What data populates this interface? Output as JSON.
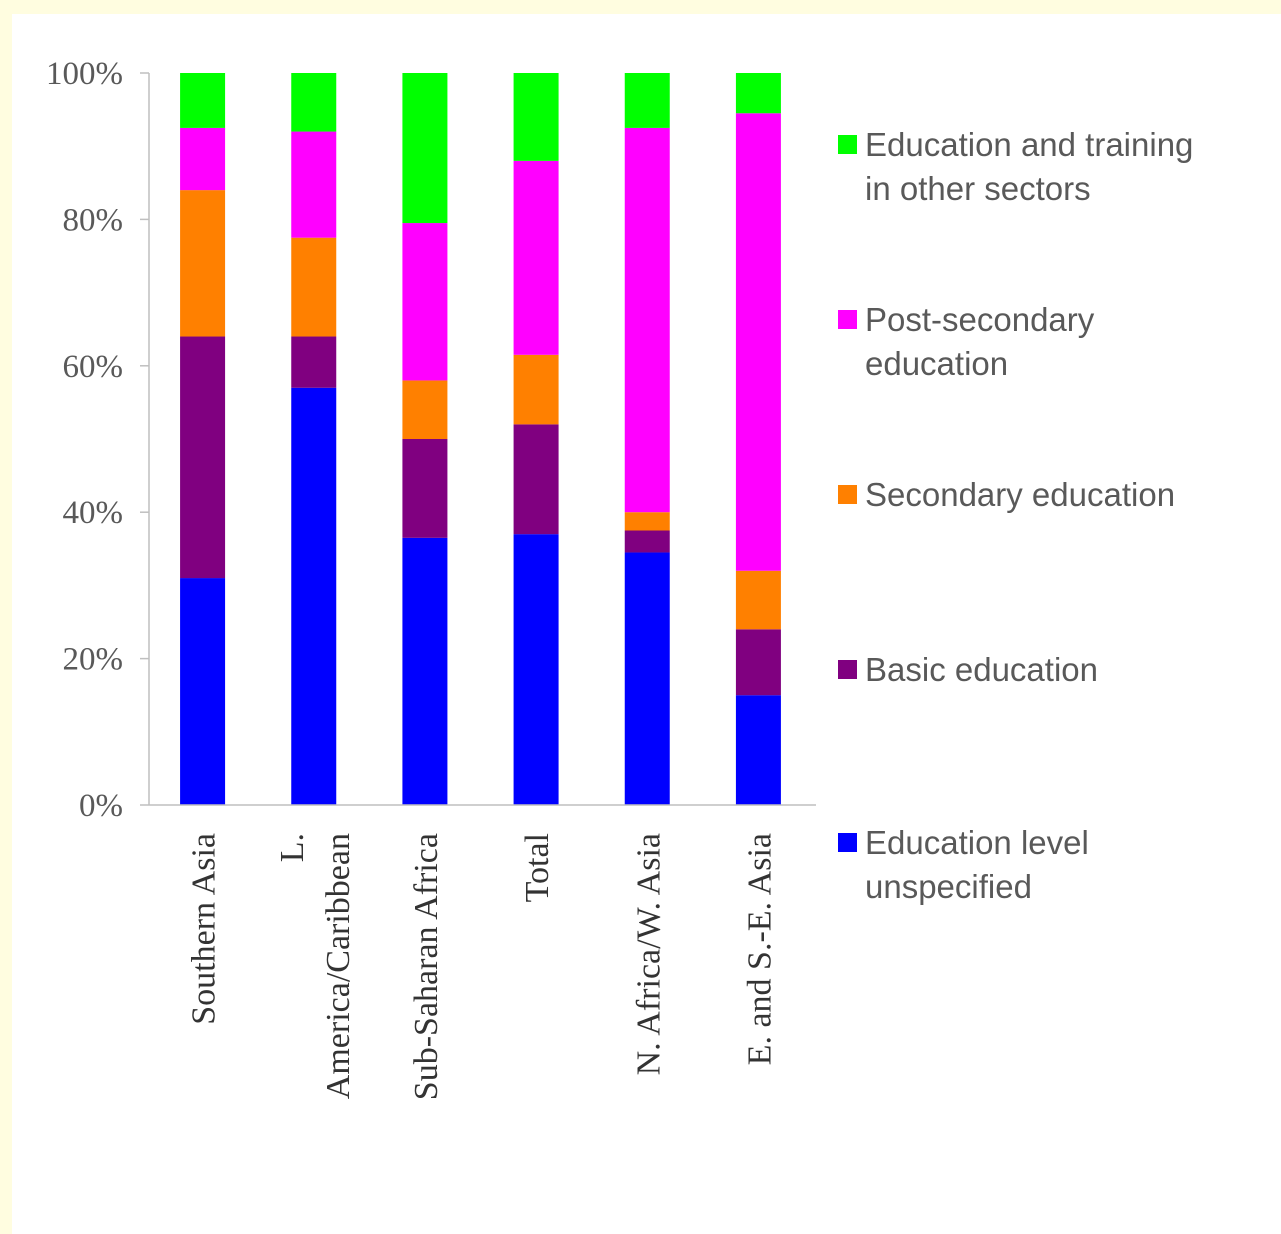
{
  "chart_data": {
    "type": "bar",
    "stacked": true,
    "percent_stacked": true,
    "categories": [
      [
        "Southern Asia"
      ],
      [
        "L.",
        "America/Caribbean"
      ],
      [
        "Sub-Saharan Africa"
      ],
      [
        "Total"
      ],
      [
        "N. Africa/W. Asia"
      ],
      [
        "E. and S.-E. Asia"
      ]
    ],
    "series": [
      {
        "name": "Education level unspecified",
        "color": "#0000ff",
        "values": [
          31,
          57,
          36.5,
          37,
          34.5,
          15
        ]
      },
      {
        "name": "Basic education",
        "color": "#800080",
        "values": [
          33,
          7,
          13.5,
          15,
          3,
          9
        ]
      },
      {
        "name": "Secondary education",
        "color": "#ff8000",
        "values": [
          20,
          13.5,
          8,
          9.5,
          2.5,
          8
        ]
      },
      {
        "name": "Post-secondary education",
        "color": "#ff00ff",
        "values": [
          8.5,
          14.5,
          21.5,
          26.5,
          52.5,
          62.5
        ]
      },
      {
        "name": "Education and training in other sectors",
        "color": "#00ff00",
        "values": [
          7.5,
          8,
          20.5,
          12,
          7.5,
          5.5
        ]
      }
    ],
    "legend": {
      "placement": "right",
      "entries": [
        [
          "Education and training",
          "in other sectors"
        ],
        [
          "Post-secondary",
          "education"
        ],
        [
          "Secondary education"
        ],
        [
          "Basic education"
        ],
        [
          "Education level",
          "unspecified"
        ]
      ],
      "colors": [
        "#00ff00",
        "#ff00ff",
        "#ff8000",
        "#800080",
        "#0000ff"
      ]
    },
    "ylim": [
      0,
      100
    ],
    "yticks": [
      "0%",
      "20%",
      "40%",
      "60%",
      "80%",
      "100%"
    ],
    "grid": false,
    "title": "",
    "xlabel": "",
    "ylabel": ""
  }
}
